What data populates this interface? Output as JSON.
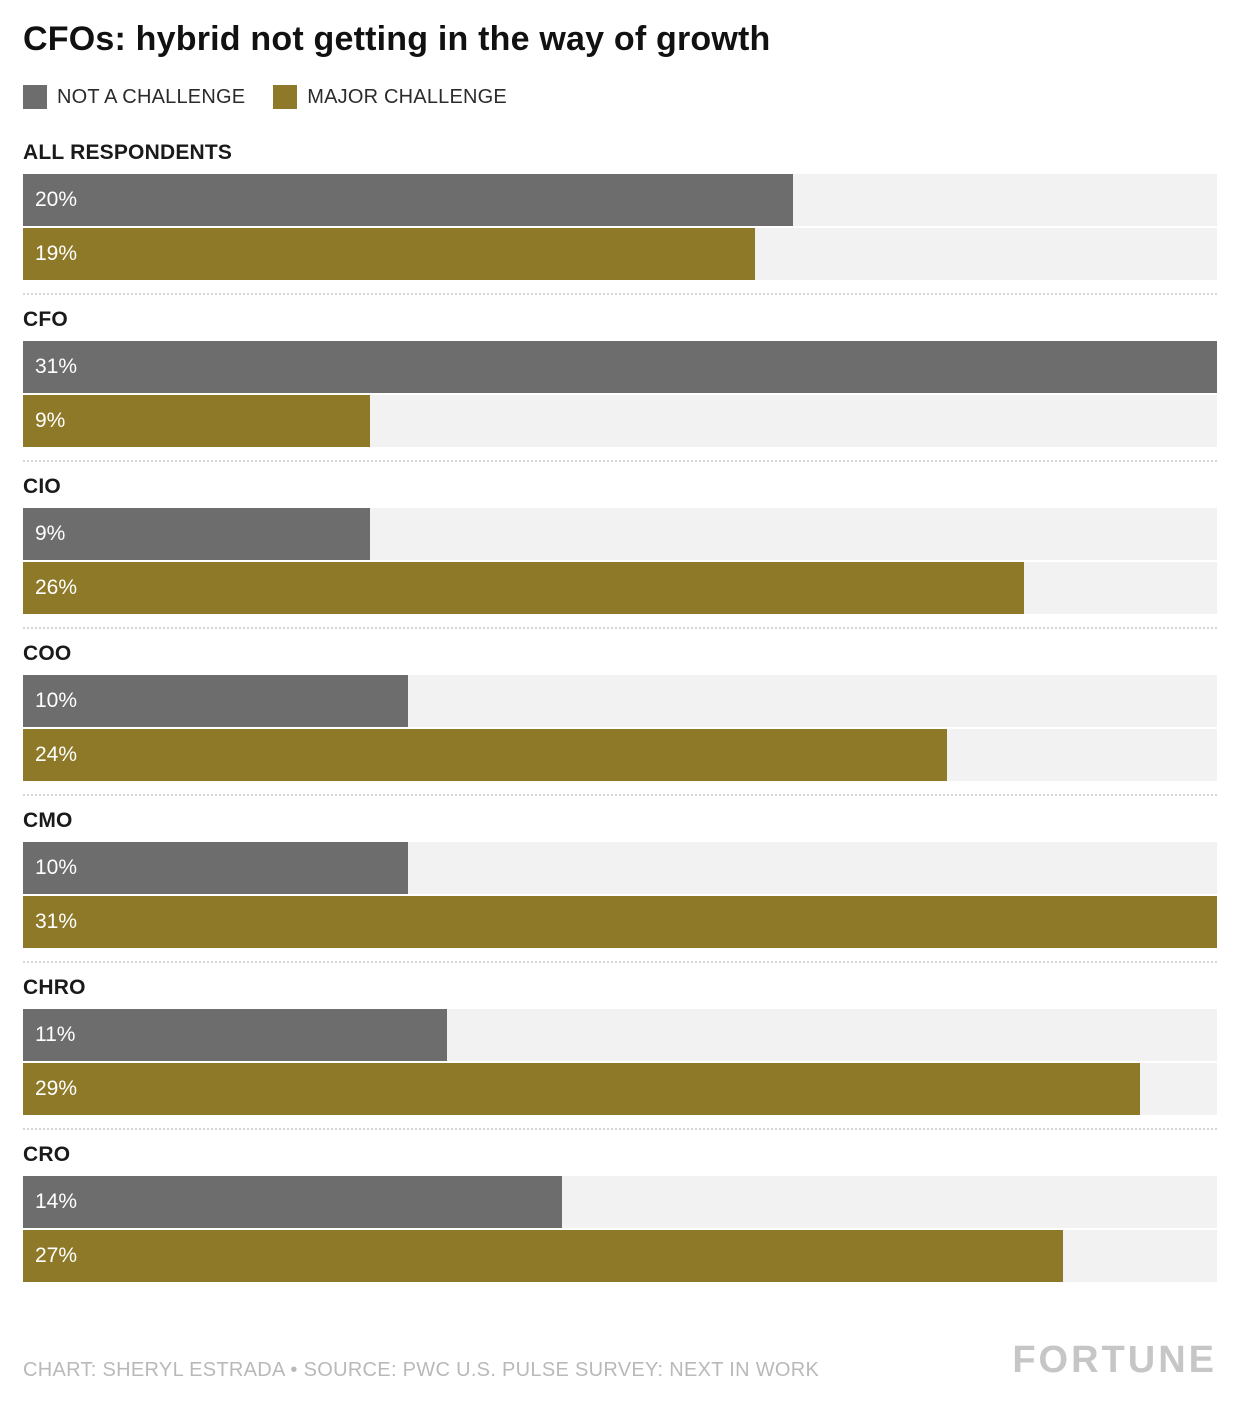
{
  "title": "CFOs: hybrid not getting in the way of growth",
  "legend": [
    {
      "label": "NOT A CHALLENGE",
      "color": "#6e6d6d"
    },
    {
      "label": "MAJOR CHALLENGE",
      "color": "#8d7928"
    }
  ],
  "chart_data": {
    "type": "bar",
    "orientation": "horizontal",
    "categories": [
      "ALL RESPONDENTS",
      "CFO",
      "CIO",
      "COO",
      "CMO",
      "CHRO",
      "CRO"
    ],
    "series": [
      {
        "name": "NOT A CHALLENGE",
        "color": "#6e6d6d",
        "values": [
          20,
          31,
          9,
          10,
          10,
          11,
          14
        ]
      },
      {
        "name": "MAJOR CHALLENGE",
        "color": "#8d7928",
        "values": [
          19,
          9,
          26,
          24,
          31,
          29,
          27
        ]
      }
    ],
    "value_suffix": "%",
    "xlim": [
      0,
      31
    ],
    "track_color": "#f3f2f2",
    "grid": false,
    "legend_position": "top"
  },
  "footer": {
    "credit": "CHART: SHERYL ESTRADA • SOURCE: PWC U.S. PULSE SURVEY: NEXT IN WORK",
    "brand": "FORTUNE"
  }
}
